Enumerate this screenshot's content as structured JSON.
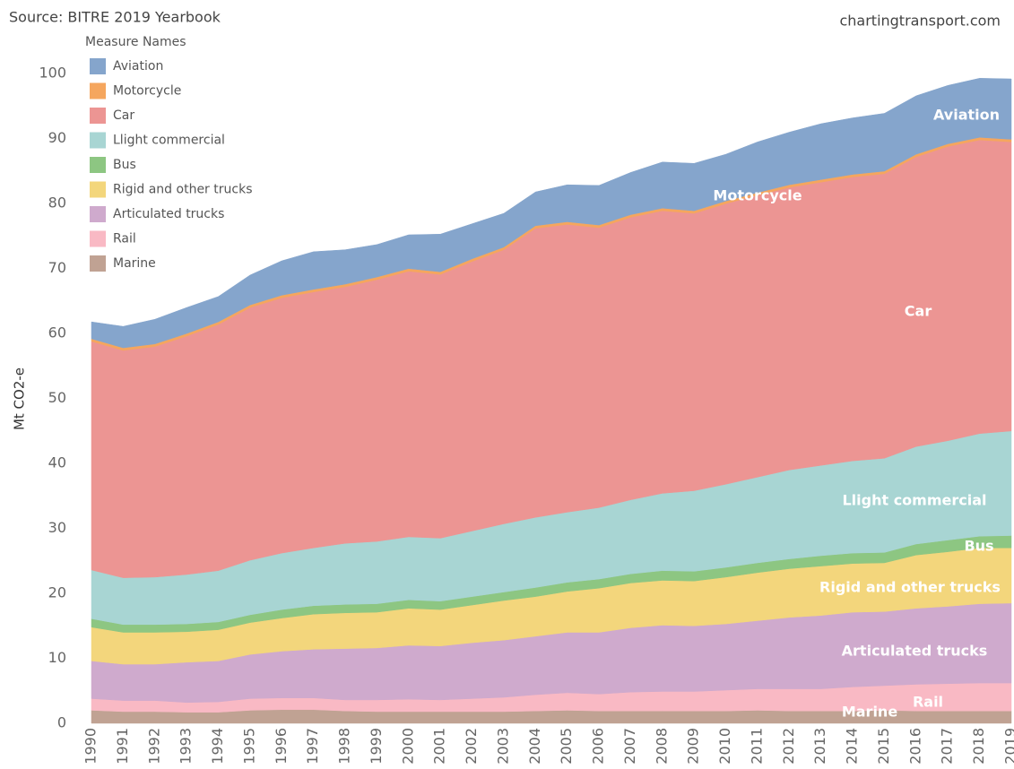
{
  "chart_data": {
    "type": "stacked_area",
    "source": "Source: BITRE 2019 Yearbook",
    "credit": "chartingtransport.com",
    "legend_title": "Measure Names",
    "y_label": "Mt CO2-e",
    "categories": [
      "1990",
      "1991",
      "1992",
      "1993",
      "1994",
      "1995",
      "1996",
      "1997",
      "1998",
      "1999",
      "2000",
      "2001",
      "2002",
      "2003",
      "2004",
      "2005",
      "2006",
      "2007",
      "2008",
      "2009",
      "2010",
      "2011",
      "2012",
      "2013",
      "2014",
      "2015",
      "2016",
      "2017",
      "2018",
      "2019"
    ],
    "ylim": [
      0,
      105
    ],
    "yticks": [
      0,
      10,
      20,
      30,
      40,
      50,
      60,
      70,
      80,
      90,
      100
    ],
    "legend": "top-left",
    "series": [
      {
        "name": "Aviation",
        "color": "#85a5cc",
        "values": [
          2.6,
          3.3,
          3.8,
          4.0,
          3.9,
          4.6,
          5.3,
          5.8,
          5.3,
          5.0,
          5.2,
          5.8,
          5.4,
          5.2,
          5.2,
          5.7,
          6.1,
          6.5,
          7.1,
          7.3,
          7.2,
          7.8,
          8.1,
          8.6,
          8.7,
          8.9,
          9.0,
          9.0,
          9.1,
          9.3
        ]
      },
      {
        "name": "Motorcycle",
        "color": "#f5a65e",
        "values": [
          0.4,
          0.4,
          0.4,
          0.4,
          0.4,
          0.4,
          0.4,
          0.4,
          0.4,
          0.4,
          0.4,
          0.4,
          0.4,
          0.4,
          0.4,
          0.4,
          0.4,
          0.4,
          0.4,
          0.4,
          0.4,
          0.4,
          0.4,
          0.4,
          0.4,
          0.4,
          0.4,
          0.4,
          0.4,
          0.4
        ]
      },
      {
        "name": "Car",
        "color": "#ec9593",
        "values": [
          35.2,
          35.0,
          35.5,
          36.7,
          37.9,
          38.9,
          39.3,
          39.4,
          39.5,
          40.3,
          40.9,
          40.6,
          41.5,
          42.2,
          44.5,
          44.3,
          43.1,
          43.5,
          43.5,
          42.7,
          43.2,
          43.4,
          43.5,
          43.6,
          43.7,
          43.8,
          44.6,
          45.3,
          45.2,
          44.5
        ]
      },
      {
        "name": "Llight commercial",
        "color": "#a8d5d3",
        "values": [
          7.5,
          7.2,
          7.3,
          7.6,
          7.9,
          8.4,
          8.7,
          8.9,
          9.4,
          9.6,
          9.7,
          9.7,
          10.1,
          10.5,
          10.8,
          10.8,
          11.0,
          11.4,
          11.9,
          12.4,
          12.8,
          13.2,
          13.7,
          13.9,
          14.2,
          14.5,
          15.0,
          15.3,
          15.8,
          16.1
        ]
      },
      {
        "name": "Bus",
        "color": "#8dc682",
        "values": [
          1.3,
          1.2,
          1.2,
          1.2,
          1.2,
          1.2,
          1.3,
          1.3,
          1.3,
          1.3,
          1.3,
          1.3,
          1.3,
          1.3,
          1.4,
          1.4,
          1.4,
          1.4,
          1.5,
          1.5,
          1.5,
          1.5,
          1.5,
          1.6,
          1.6,
          1.6,
          1.7,
          1.8,
          1.8,
          1.9
        ]
      },
      {
        "name": "Rigid and other trucks",
        "color": "#f3d67c",
        "values": [
          5.2,
          4.9,
          4.9,
          4.7,
          4.8,
          4.9,
          5.1,
          5.4,
          5.5,
          5.5,
          5.7,
          5.6,
          5.8,
          6.1,
          6.1,
          6.3,
          6.8,
          6.9,
          6.9,
          6.9,
          7.2,
          7.4,
          7.5,
          7.6,
          7.5,
          7.5,
          8.2,
          8.4,
          8.6,
          8.5
        ]
      },
      {
        "name": "Articulated trucks",
        "color": "#cfaacd",
        "values": [
          5.8,
          5.6,
          5.6,
          6.2,
          6.3,
          6.8,
          7.2,
          7.5,
          7.9,
          8.0,
          8.3,
          8.3,
          8.6,
          8.8,
          9.0,
          9.3,
          9.5,
          9.9,
          10.2,
          10.1,
          10.2,
          10.5,
          11.0,
          11.3,
          11.5,
          11.4,
          11.7,
          11.9,
          12.2,
          12.3
        ]
      },
      {
        "name": "Rail",
        "color": "#f9b9c4",
        "values": [
          1.8,
          1.7,
          1.7,
          1.5,
          1.6,
          1.8,
          1.8,
          1.8,
          1.7,
          1.8,
          1.9,
          1.8,
          2.0,
          2.2,
          2.5,
          2.7,
          2.6,
          2.9,
          3.0,
          3.0,
          3.2,
          3.3,
          3.4,
          3.4,
          3.7,
          3.8,
          4.1,
          4.2,
          4.3,
          4.3
        ]
      },
      {
        "name": "Marine",
        "color": "#c0a293",
        "values": [
          2.0,
          1.8,
          1.8,
          1.7,
          1.7,
          2.0,
          2.1,
          2.1,
          1.9,
          1.8,
          1.8,
          1.8,
          1.8,
          1.8,
          1.9,
          2.0,
          1.9,
          1.9,
          1.9,
          1.9,
          1.9,
          2.0,
          1.9,
          1.9,
          1.9,
          2.0,
          1.9,
          1.9,
          1.9,
          1.9
        ]
      }
    ]
  }
}
